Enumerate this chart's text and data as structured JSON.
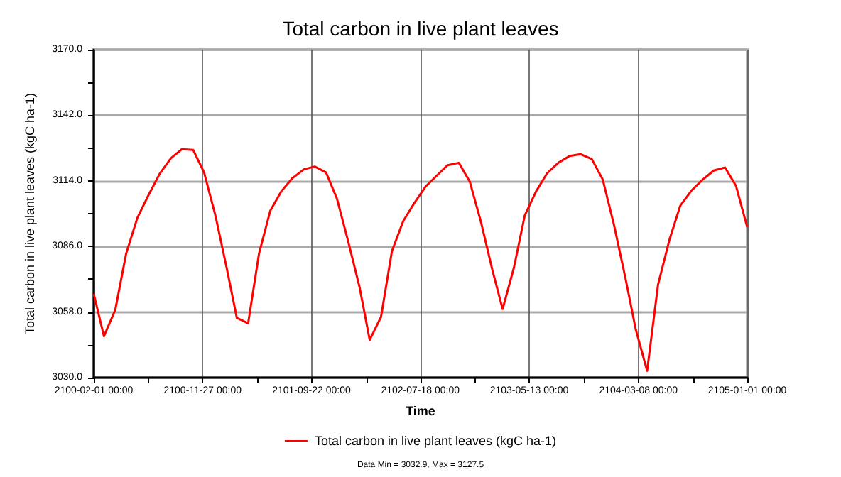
{
  "chart_data": {
    "type": "line",
    "title": "Total carbon in live plant leaves",
    "xlabel": "Time",
    "ylabel": "Total carbon in live plant leaves (kgC ha-1)",
    "annotations": [
      "Data Min = 3032.9, Max = 3127.5"
    ],
    "x": [
      "2100-02-01",
      "2100-03-01",
      "2100-04-01",
      "2100-05-01",
      "2100-06-01",
      "2100-07-01",
      "2100-08-01",
      "2100-09-01",
      "2100-10-01",
      "2100-11-01",
      "2100-12-01",
      "2101-01-01",
      "2101-02-01",
      "2101-03-01",
      "2101-04-01",
      "2101-05-01",
      "2101-06-01",
      "2101-07-01",
      "2101-08-01",
      "2101-09-01",
      "2101-10-01",
      "2101-11-01",
      "2101-12-01",
      "2102-01-01",
      "2102-02-01",
      "2102-03-01",
      "2102-04-01",
      "2102-05-01",
      "2102-06-01",
      "2102-07-01",
      "2102-08-01",
      "2102-09-01",
      "2102-10-01",
      "2102-11-01",
      "2102-12-01",
      "2103-01-01",
      "2103-02-01",
      "2103-03-01",
      "2103-04-01",
      "2103-05-01",
      "2103-06-01",
      "2103-07-01",
      "2103-08-01",
      "2103-09-01",
      "2103-10-01",
      "2103-11-01",
      "2103-12-01",
      "2104-01-01",
      "2104-02-01",
      "2104-03-01",
      "2104-04-01",
      "2104-05-01",
      "2104-06-01",
      "2104-07-01",
      "2104-08-01",
      "2104-09-01",
      "2104-10-01",
      "2104-11-01",
      "2104-12-01",
      "2105-01-01"
    ],
    "series": [
      {
        "name": "Total carbon in live plant leaves (kgC ha-1)",
        "color": "#ff0000",
        "values": [
          3065.7,
          3047.7,
          3058.9,
          3083.0,
          3098.3,
          3107.8,
          3117.0,
          3123.7,
          3127.5,
          3127.2,
          3117.6,
          3099.3,
          3076.9,
          3055.5,
          3053.2,
          3083.0,
          3101.3,
          3109.5,
          3115.2,
          3118.9,
          3120.1,
          3117.6,
          3106.4,
          3088.1,
          3068.7,
          3046.1,
          3055.9,
          3084.0,
          3096.8,
          3104.4,
          3111.5,
          3116.2,
          3120.7,
          3121.7,
          3113.6,
          3096.2,
          3075.9,
          3059.3,
          3076.9,
          3099.3,
          3109.5,
          3117.2,
          3121.7,
          3124.6,
          3125.4,
          3123.3,
          3114.6,
          3095.2,
          3072.8,
          3050.4,
          3032.9,
          3069.7,
          3088.7,
          3103.4,
          3109.9,
          3114.6,
          3118.4,
          3119.7,
          3111.9,
          3094.2
        ]
      }
    ],
    "xlim": [
      "2100-02-01",
      "2105-01-01"
    ],
    "xticks": [
      {
        "value": "2100-02-01",
        "label": "2100-02-01 00:00"
      },
      {
        "value": "2100-06-30T12:00",
        "label": null
      },
      {
        "value": "2100-11-27",
        "label": "2100-11-27 00:00"
      },
      {
        "value": "2101-04-25T12:00",
        "label": null
      },
      {
        "value": "2101-09-22",
        "label": "2101-09-22 00:00"
      },
      {
        "value": "2102-02-19T12:00",
        "label": null
      },
      {
        "value": "2102-07-18",
        "label": "2102-07-18 00:00"
      },
      {
        "value": "2102-12-15T12:00",
        "label": null
      },
      {
        "value": "2103-05-13",
        "label": "2103-05-13 00:00"
      },
      {
        "value": "2103-10-10T12:00",
        "label": null
      },
      {
        "value": "2104-03-08",
        "label": "2104-03-08 00:00"
      },
      {
        "value": "2104-08-05T12:00",
        "label": null
      },
      {
        "value": "2105-01-01",
        "label": "2105-01-01 00:00"
      }
    ],
    "ylim": [
      3030,
      3170
    ],
    "yticks": [
      {
        "value": 3030,
        "label": "3030.0"
      },
      {
        "value": 3044,
        "label": null
      },
      {
        "value": 3058,
        "label": "3058.0"
      },
      {
        "value": 3072,
        "label": null
      },
      {
        "value": 3086,
        "label": "3086.0"
      },
      {
        "value": 3100,
        "label": null
      },
      {
        "value": 3114,
        "label": "3114.0"
      },
      {
        "value": 3128,
        "label": null
      },
      {
        "value": 3142,
        "label": "3142.0"
      },
      {
        "value": 3156,
        "label": null
      },
      {
        "value": 3170,
        "label": "3170.0"
      }
    ],
    "grid": true,
    "legend": "bottom",
    "marker": "none",
    "line_style": "solid"
  }
}
